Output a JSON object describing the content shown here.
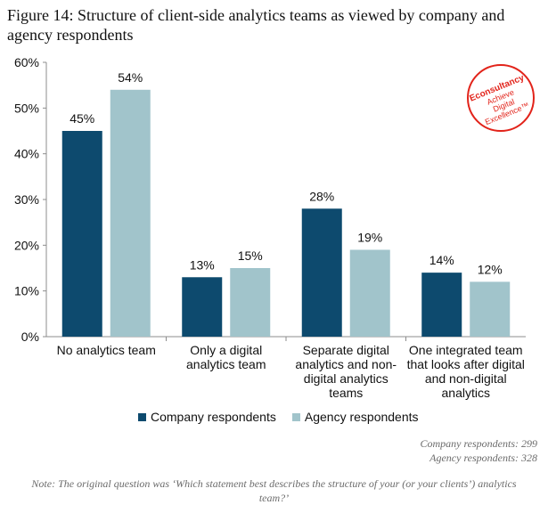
{
  "figure_title": "Figure 14: Structure of client-side analytics teams as viewed by company and agency respondents",
  "logo": {
    "brand": "Econsultancy",
    "tagline_1": "Achieve",
    "tagline_2": "Digital",
    "tagline_3": "Excellence™",
    "color": "#e2231a"
  },
  "chart_data": {
    "type": "bar",
    "title": "",
    "xlabel": "",
    "ylabel": "",
    "ylim": [
      0,
      60
    ],
    "yticks": [
      "0%",
      "10%",
      "20%",
      "30%",
      "40%",
      "50%",
      "60%"
    ],
    "ytick_values": [
      0,
      10,
      20,
      30,
      40,
      50,
      60
    ],
    "grid": false,
    "legend_position": "bottom",
    "categories": [
      [
        "No analytics team"
      ],
      [
        "Only a digital",
        "analytics team"
      ],
      [
        "Separate digital",
        "analytics and non-",
        "digital analytics",
        "teams"
      ],
      [
        "One integrated team",
        "that looks after digital",
        "and non-digital",
        "analytics"
      ]
    ],
    "series": [
      {
        "name": "Company respondents",
        "color": "#0d4a6e",
        "values": [
          45,
          13,
          28,
          14
        ],
        "labels": [
          "45%",
          "13%",
          "28%",
          "14%"
        ]
      },
      {
        "name": "Agency respondents",
        "color": "#a1c4cb",
        "values": [
          54,
          15,
          19,
          12
        ],
        "labels": [
          "54%",
          "15%",
          "19%",
          "12%"
        ]
      }
    ]
  },
  "sample_sizes": [
    "Company respondents: 299",
    "Agency respondents: 328"
  ],
  "note": "Note: The original question was ‘Which statement best describes the structure of your (or your clients’) analytics team?’"
}
